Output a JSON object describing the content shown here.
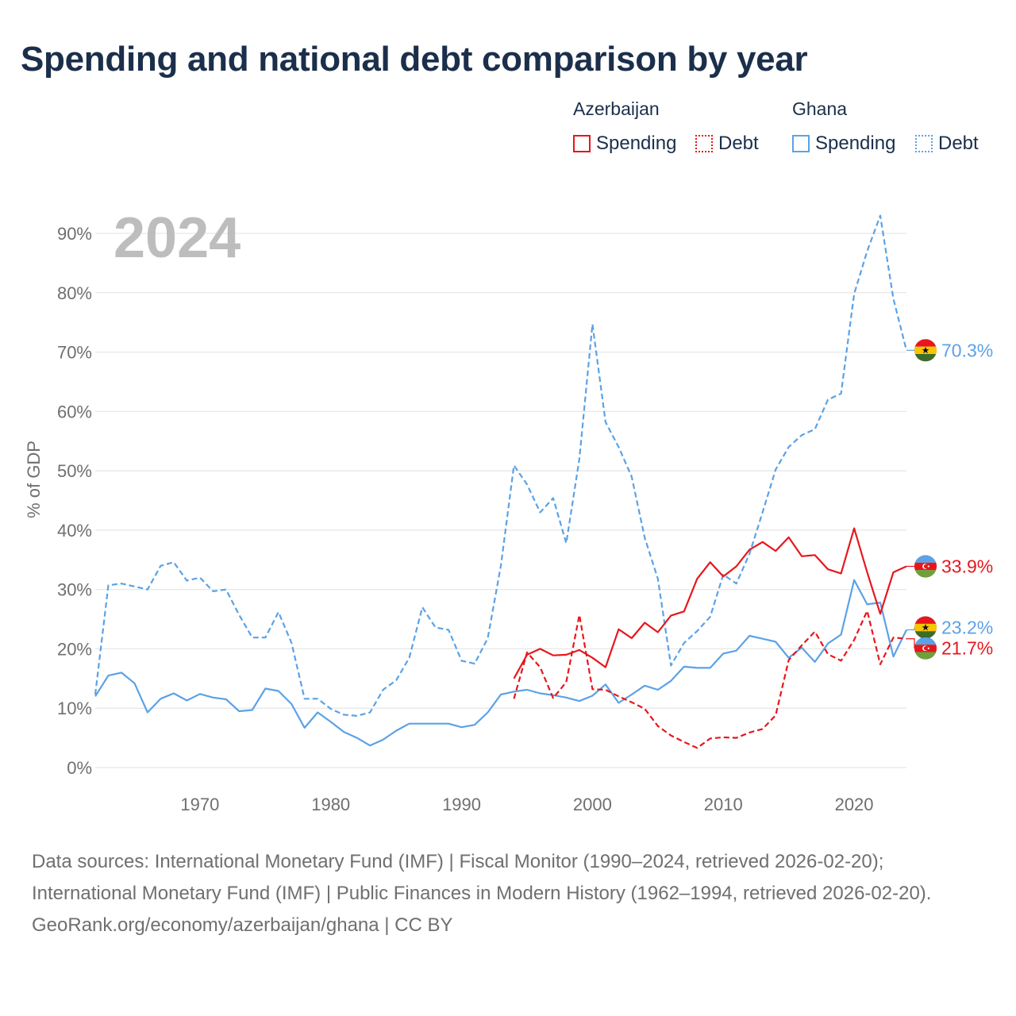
{
  "title": "Spending and national debt comparison by year",
  "legend": {
    "groups": [
      {
        "name": "Azerbaijan",
        "items": [
          "Spending",
          "Debt"
        ]
      },
      {
        "name": "Ghana",
        "items": [
          "Spending",
          "Debt"
        ]
      }
    ]
  },
  "colors": {
    "azerbaijan": "#e8161c",
    "ghana": "#5ba2e6",
    "title": "#1b2f4b"
  },
  "icons": {
    "azerbaijan": "azerbaijan-flag-icon",
    "ghana": "ghana-flag-icon"
  },
  "footer": {
    "sources": "Data sources: International Monetary Fund (IMF) | Fiscal Monitor (1990–2024, retrieved 2026-02-20); International Monetary Fund (IMF) | Public Finances in Modern History (1962–1994, retrieved 2026-02-20).",
    "attribution": "GeoRank.org/economy/azerbaijan/ghana | CC BY"
  },
  "chart_data": {
    "type": "line",
    "title": "Spending and national debt comparison by year",
    "year_label": "2024",
    "xlabel": "",
    "ylabel": "% of GDP",
    "xlim": [
      1962,
      2024
    ],
    "ylim": [
      0,
      90
    ],
    "x_ticks": [
      1970,
      1980,
      1990,
      2000,
      2010,
      2020
    ],
    "y_ticks": [
      0,
      10,
      20,
      30,
      40,
      50,
      60,
      70,
      80,
      90
    ],
    "y_tick_labels": [
      "0%",
      "10%",
      "20%",
      "30%",
      "40%",
      "50%",
      "60%",
      "70%",
      "80%",
      "90%"
    ],
    "series": [
      {
        "name": "Ghana Debt",
        "country": "Ghana",
        "measure": "Debt",
        "style": "dashed",
        "color": "#5ba2e6",
        "start": 1962,
        "values": [
          12.3,
          30.7,
          31.0,
          30.5,
          30.0,
          34.0,
          34.6,
          31.5,
          32.0,
          29.7,
          30.0,
          25.7,
          21.9,
          21.9,
          26.2,
          21.0,
          11.6,
          11.6,
          9.9,
          8.9,
          8.7,
          9.3,
          13.1,
          14.7,
          18.5,
          27.0,
          23.6,
          23.2,
          18.0,
          17.5,
          21.8,
          34.0,
          50.9,
          47.7,
          43.0,
          45.4,
          37.8,
          52.0,
          74.7,
          58.2,
          54.0,
          49.0,
          38.7,
          31.8,
          17.2,
          21.0,
          23.0,
          25.4,
          32.5,
          31.0,
          36.0,
          43.0,
          50.2,
          54.0,
          56.0,
          57.0,
          62.0,
          63.0,
          79.8,
          87.0,
          93.0,
          79.0,
          70.3
        ],
        "end_label": "70.3%"
      },
      {
        "name": "Ghana Spending",
        "country": "Ghana",
        "measure": "Spending",
        "style": "solid",
        "color": "#5ba2e6",
        "start": 1962,
        "values": [
          12.0,
          15.5,
          16.0,
          14.2,
          9.3,
          11.6,
          12.5,
          11.3,
          12.4,
          11.8,
          11.5,
          9.5,
          9.7,
          13.3,
          12.9,
          10.7,
          6.7,
          9.3,
          7.7,
          6.0,
          5.0,
          3.7,
          4.7,
          6.2,
          7.4,
          7.4,
          7.4,
          7.4,
          6.8,
          7.2,
          9.3,
          12.3,
          12.8,
          13.1,
          12.5,
          12.2,
          11.8,
          11.2,
          12.1,
          14.0,
          10.9,
          12.3,
          13.8,
          13.1,
          14.6,
          17.0,
          16.8,
          16.8,
          19.2,
          19.7,
          22.2,
          21.7,
          21.2,
          18.5,
          20.2,
          17.8,
          20.9,
          22.4,
          31.6,
          27.5,
          27.8,
          18.7,
          23.2
        ],
        "end_label": "23.2%"
      },
      {
        "name": "Azerbaijan Spending",
        "country": "Azerbaijan",
        "measure": "Spending",
        "style": "solid",
        "color": "#e8161c",
        "start": 1994,
        "values": [
          15.0,
          19.0,
          20.0,
          18.9,
          19.0,
          19.8,
          18.5,
          16.9,
          23.3,
          21.8,
          24.4,
          22.8,
          25.6,
          26.3,
          31.8,
          34.6,
          32.2,
          33.9,
          36.7,
          38.0,
          36.5,
          38.8,
          35.6,
          35.8,
          33.4,
          32.7,
          40.3,
          32.9,
          25.9,
          32.9,
          33.9
        ],
        "end_label": "33.9%"
      },
      {
        "name": "Azerbaijan Debt",
        "country": "Azerbaijan",
        "measure": "Debt",
        "style": "dashed",
        "color": "#e8161c",
        "start": 1994,
        "values": [
          11.6,
          19.4,
          16.9,
          11.7,
          14.4,
          25.7,
          13.2,
          13.1,
          12.0,
          11.0,
          9.9,
          7.0,
          5.4,
          4.3,
          3.3,
          4.9,
          5.1,
          5.0,
          5.9,
          6.5,
          8.8,
          18.1,
          20.6,
          22.9,
          19.1,
          18.0,
          21.5,
          26.4,
          17.4,
          21.9,
          21.7
        ],
        "end_label": "21.7%"
      }
    ]
  }
}
